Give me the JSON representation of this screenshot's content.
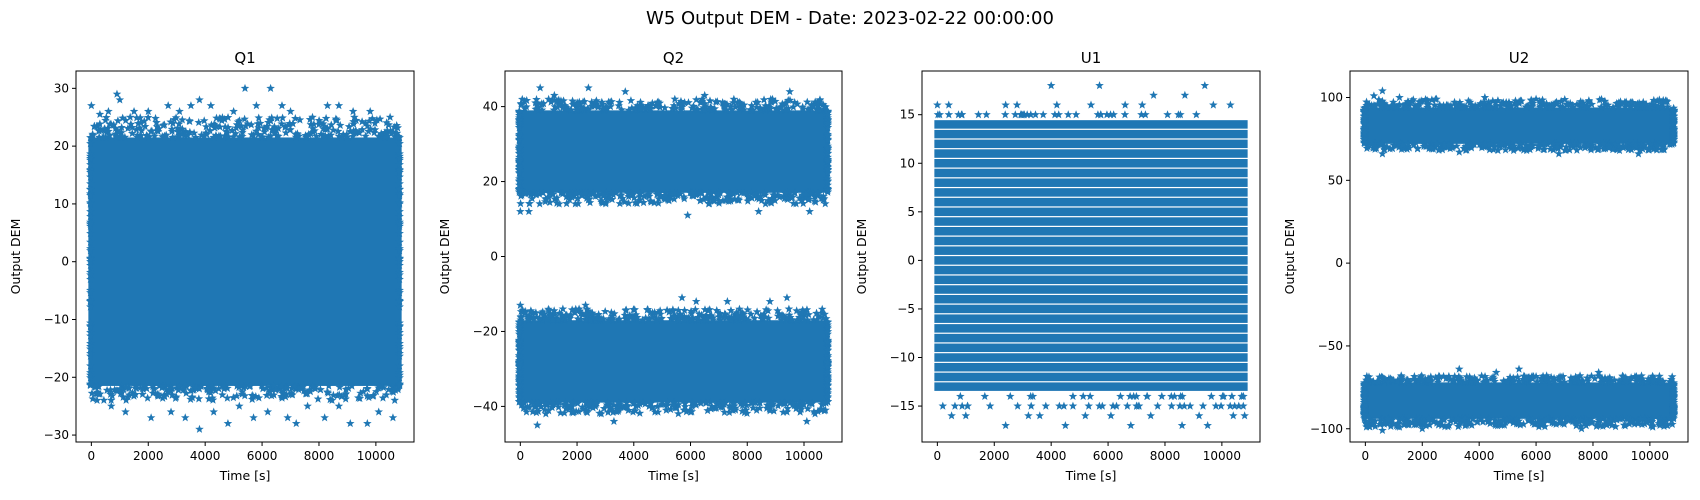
{
  "figure": {
    "suptitle": "W5 Output DEM - Date: 2023-02-22 00:00:00",
    "marker_color": "#1f77b4",
    "marker": "star"
  },
  "chart_data": [
    {
      "type": "scatter",
      "title": "Q1",
      "xlabel": "Time [s]",
      "ylabel": "Output DEM",
      "xlim": [
        -540,
        11340
      ],
      "ylim": [
        -31.2,
        33
      ],
      "xticks": [
        0,
        2000,
        4000,
        6000,
        8000,
        10000
      ],
      "yticks": [
        -30,
        -20,
        -10,
        0,
        10,
        20,
        30
      ],
      "series": [
        {
          "x_range": [
            0,
            10800
          ],
          "bands": [
            {
              "core": [
                -21.5,
                21.5
              ],
              "edge": [
                -24,
                25
              ]
            }
          ]
        }
      ],
      "outliers": [
        [
          0,
          27
        ],
        [
          300,
          25.5
        ],
        [
          600,
          26
        ],
        [
          900,
          29
        ],
        [
          1000,
          28
        ],
        [
          1500,
          26
        ],
        [
          2000,
          26
        ],
        [
          2700,
          27
        ],
        [
          3100,
          26
        ],
        [
          3500,
          27
        ],
        [
          3800,
          28
        ],
        [
          4200,
          27
        ],
        [
          5000,
          26
        ],
        [
          5400,
          30
        ],
        [
          5800,
          27
        ],
        [
          6300,
          30
        ],
        [
          6700,
          27
        ],
        [
          7000,
          26
        ],
        [
          8300,
          27
        ],
        [
          8700,
          27
        ],
        [
          9200,
          26
        ],
        [
          9800,
          26
        ],
        [
          10500,
          25
        ],
        [
          200,
          -24
        ],
        [
          700,
          -25
        ],
        [
          1200,
          -26
        ],
        [
          2100,
          -27
        ],
        [
          2800,
          -26
        ],
        [
          3300,
          -27
        ],
        [
          3800,
          -29
        ],
        [
          4300,
          -26
        ],
        [
          4800,
          -28
        ],
        [
          5200,
          -25
        ],
        [
          5700,
          -27
        ],
        [
          6200,
          -26
        ],
        [
          6900,
          -27
        ],
        [
          7200,
          -28
        ],
        [
          7600,
          -25
        ],
        [
          8200,
          -27
        ],
        [
          8700,
          -25
        ],
        [
          9100,
          -28
        ],
        [
          9700,
          -28
        ],
        [
          10100,
          -26
        ],
        [
          10600,
          -27
        ]
      ]
    },
    {
      "type": "scatter",
      "title": "Q2",
      "xlabel": "Time [s]",
      "ylabel": "Output DEM",
      "xlim": [
        -540,
        11340
      ],
      "ylim": [
        -49.5,
        49.5
      ],
      "xticks": [
        0,
        2000,
        4000,
        6000,
        8000,
        10000
      ],
      "yticks": [
        -40,
        -20,
        0,
        20,
        40
      ],
      "series": [
        {
          "x_range": [
            0,
            10800
          ],
          "bands": [
            {
              "core": [
                17,
                39
              ],
              "edge": [
                14,
                42
              ]
            },
            {
              "core": [
                -39,
                -17
              ],
              "edge": [
                -42,
                -14
              ]
            }
          ]
        }
      ],
      "outliers": [
        [
          0,
          12
        ],
        [
          300,
          12
        ],
        [
          700,
          45
        ],
        [
          1200,
          43
        ],
        [
          2400,
          45
        ],
        [
          3700,
          44
        ],
        [
          5900,
          11
        ],
        [
          6500,
          43
        ],
        [
          8400,
          12
        ],
        [
          9500,
          44
        ],
        [
          10200,
          12
        ],
        [
          0,
          -13
        ],
        [
          600,
          -45
        ],
        [
          900,
          -42
        ],
        [
          1500,
          -14
        ],
        [
          2300,
          -13
        ],
        [
          3300,
          -44
        ],
        [
          5700,
          -11
        ],
        [
          6200,
          -12
        ],
        [
          7300,
          -12
        ],
        [
          8800,
          -12
        ],
        [
          9400,
          -11
        ],
        [
          10100,
          -44
        ]
      ]
    },
    {
      "type": "scatter",
      "title": "U1",
      "xlabel": "Time [s]",
      "ylabel": "Output DEM",
      "xlim": [
        -540,
        11340
      ],
      "ylim": [
        -18.7,
        19.5
      ],
      "xticks": [
        0,
        2000,
        4000,
        6000,
        8000,
        10000
      ],
      "yticks": [
        -15,
        -10,
        -5,
        0,
        5,
        10,
        15
      ],
      "series": [
        {
          "x_range": [
            0,
            10800
          ],
          "levels_range": [
            -15,
            15
          ],
          "dense_range": [
            -13,
            14
          ]
        }
      ],
      "outliers": [
        [
          0,
          16
        ],
        [
          400,
          16
        ],
        [
          2400,
          16
        ],
        [
          2800,
          16
        ],
        [
          4000,
          18
        ],
        [
          4200,
          16
        ],
        [
          4600,
          15
        ],
        [
          5400,
          16
        ],
        [
          5700,
          18
        ],
        [
          6600,
          16
        ],
        [
          7200,
          16
        ],
        [
          7600,
          17
        ],
        [
          8700,
          17
        ],
        [
          9400,
          18
        ],
        [
          9700,
          16
        ],
        [
          10300,
          16
        ],
        [
          500,
          -16
        ],
        [
          1000,
          -16
        ],
        [
          2400,
          -17
        ],
        [
          3200,
          -16
        ],
        [
          3600,
          -16
        ],
        [
          4500,
          -17
        ],
        [
          5200,
          -16
        ],
        [
          6100,
          -16
        ],
        [
          6800,
          -17
        ],
        [
          7500,
          -16
        ],
        [
          8600,
          -17
        ],
        [
          9200,
          -16
        ],
        [
          9500,
          -17
        ],
        [
          10400,
          -16
        ],
        [
          10800,
          -16
        ]
      ]
    },
    {
      "type": "scatter",
      "title": "U2",
      "xlabel": "Time [s]",
      "ylabel": "Output DEM",
      "xlim": [
        -540,
        11340
      ],
      "ylim": [
        -108,
        116
      ],
      "xticks": [
        0,
        2000,
        4000,
        6000,
        8000,
        10000
      ],
      "yticks": [
        -100,
        -50,
        0,
        50,
        100
      ],
      "series": [
        {
          "x_range": [
            0,
            10800
          ],
          "bands": [
            {
              "core": [
                72,
                94
              ],
              "edge": [
                68,
                99
              ]
            },
            {
              "core": [
                -94,
                -72
              ],
              "edge": [
                -99,
                -68
              ]
            }
          ]
        }
      ],
      "outliers": [
        [
          300,
          101
        ],
        [
          600,
          104
        ],
        [
          1200,
          100
        ],
        [
          2500,
          99
        ],
        [
          4200,
          100
        ],
        [
          6000,
          99
        ],
        [
          600,
          66
        ],
        [
          3300,
          67
        ],
        [
          6800,
          66
        ],
        [
          9600,
          66
        ],
        [
          600,
          -101
        ],
        [
          1200,
          -99
        ],
        [
          3300,
          -64
        ],
        [
          4600,
          -66
        ],
        [
          5400,
          -64
        ],
        [
          8200,
          -66
        ],
        [
          2000,
          -100
        ],
        [
          7600,
          -100
        ],
        [
          10100,
          -99
        ]
      ]
    }
  ]
}
